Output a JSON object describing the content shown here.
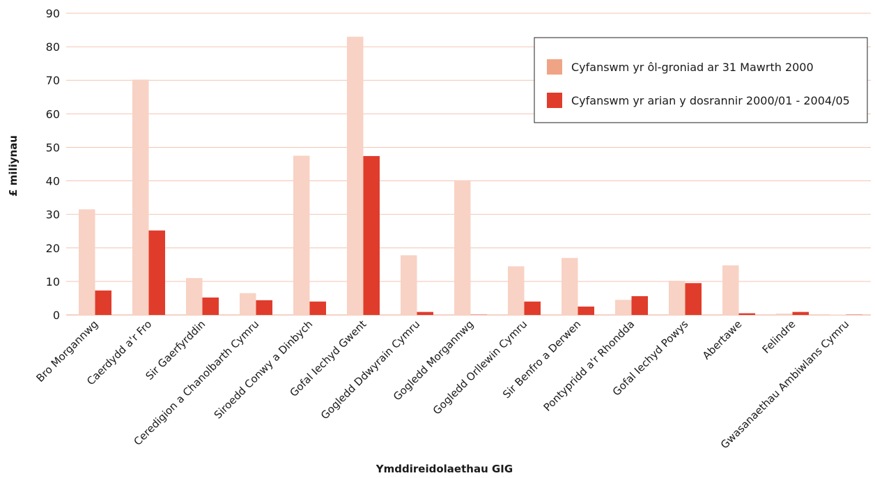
{
  "chart_data": {
    "type": "bar",
    "xlabel": "Ymddireidolaethau GIG",
    "ylabel": "£ miliynau",
    "ylim": [
      0,
      90
    ],
    "yticks": [
      0,
      10,
      20,
      30,
      40,
      50,
      60,
      70,
      80,
      90
    ],
    "grid": true,
    "legend_position": "top-right",
    "categories": [
      "Bro Morgannwg",
      "Caerdydd a'r Fro",
      "Sir Gaerfyrddin",
      "Ceredigion a Chanolbarth Cymru",
      "Siroedd Conwy a Dinbych",
      "Gofal Iechyd Gwent",
      "Gogledd Ddwyrain Cymru",
      "Gogledd Morgannwg",
      "Gogledd Orllewin Cymru",
      "Sir Benfro a Derwen",
      "Pontypridd a'r Rhondda",
      "Gofal Iechyd Powys",
      "Abertawe",
      "Felindre",
      "Gwasanaethau Ambiwlans Cymru"
    ],
    "series": [
      {
        "name": "Cyfanswm yr ôl-groniad ar 31 Mawrth 2000",
        "color": "#f8d2c4",
        "legend_color": "#f0a486",
        "values": [
          31.5,
          70.2,
          11.0,
          6.5,
          47.5,
          83.0,
          17.8,
          40.2,
          14.5,
          17.0,
          4.5,
          10.2,
          14.8,
          0.4,
          0.1
        ]
      },
      {
        "name": "Cyfanswm yr arian y dosrannir 2000/01 - 2004/05",
        "color": "#e03c2c",
        "legend_color": "#e03c2c",
        "values": [
          7.3,
          25.2,
          5.2,
          4.4,
          4.0,
          47.4,
          0.9,
          0.1,
          4.0,
          2.5,
          5.6,
          9.5,
          0.5,
          0.9,
          0.1
        ]
      }
    ]
  }
}
